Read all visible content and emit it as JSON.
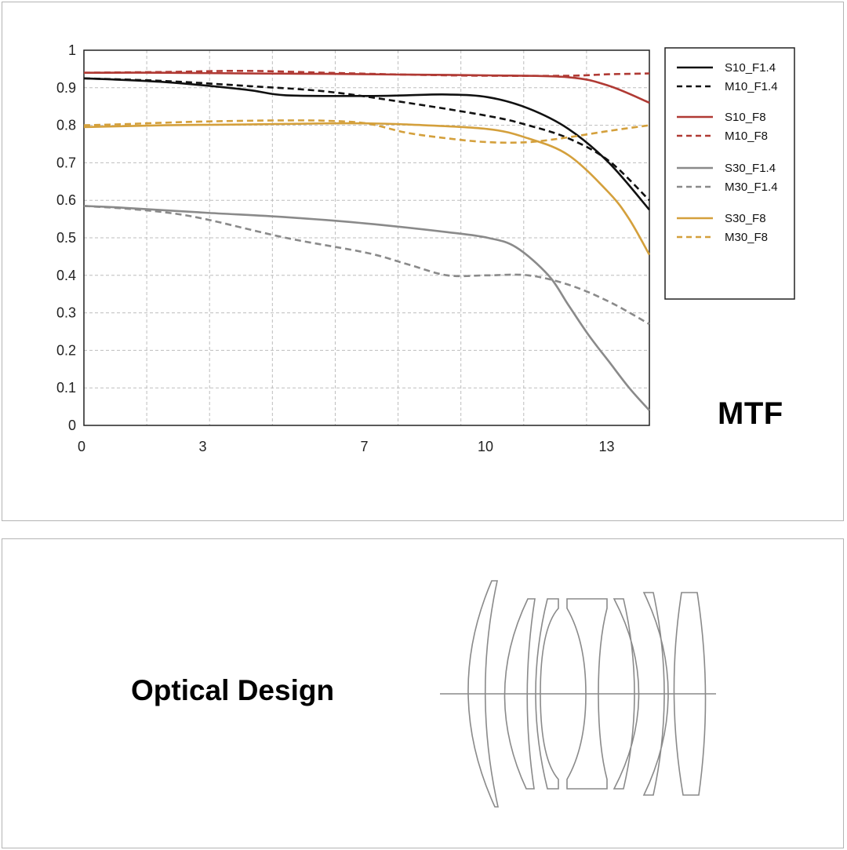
{
  "chart_data": {
    "type": "line",
    "title": "MTF",
    "xlabel": "",
    "ylabel": "",
    "xlim": [
      0,
      14
    ],
    "ylim": [
      0,
      1
    ],
    "x_ticks": [
      0,
      3,
      7,
      10,
      13
    ],
    "x_tick_labels": [
      "0",
      "3",
      "7",
      "10",
      "13"
    ],
    "y_ticks": [
      0,
      0.1,
      0.2,
      0.3,
      0.4,
      0.5,
      0.6,
      0.7,
      0.8,
      0.9,
      1
    ],
    "y_tick_labels": [
      "0",
      "0.1",
      "0.2",
      "0.3",
      "0.4",
      "0.5",
      "0.6",
      "0.7",
      "0.8",
      "0.9",
      "1"
    ],
    "grid": true,
    "legend_position": "right",
    "series": [
      {
        "name": "S10_F1.4",
        "color": "#111111",
        "dash": false,
        "x": [
          0,
          2,
          4,
          5,
          7,
          8,
          9,
          10,
          11,
          12,
          13,
          14
        ],
        "y": [
          0.925,
          0.915,
          0.895,
          0.88,
          0.878,
          0.88,
          0.882,
          0.875,
          0.845,
          0.79,
          0.7,
          0.575
        ]
      },
      {
        "name": "M10_F1.4",
        "color": "#111111",
        "dash": true,
        "x": [
          0,
          2,
          4,
          6,
          8,
          10,
          11,
          12,
          13,
          14
        ],
        "y": [
          0.925,
          0.918,
          0.905,
          0.89,
          0.86,
          0.825,
          0.8,
          0.765,
          0.705,
          0.6
        ]
      },
      {
        "name": "S10_F8",
        "color": "#b03a34",
        "dash": false,
        "x": [
          0,
          2,
          4,
          6,
          8,
          10,
          12,
          13,
          14
        ],
        "y": [
          0.94,
          0.94,
          0.938,
          0.937,
          0.935,
          0.933,
          0.928,
          0.905,
          0.86
        ]
      },
      {
        "name": "M10_F8",
        "color": "#b03a34",
        "dash": true,
        "x": [
          0,
          2,
          4,
          6,
          8,
          10,
          12,
          13,
          14
        ],
        "y": [
          0.94,
          0.942,
          0.945,
          0.94,
          0.935,
          0.932,
          0.932,
          0.936,
          0.938
        ]
      },
      {
        "name": "S30_F1.4",
        "color": "#8a8a8a",
        "dash": false,
        "x": [
          0,
          1,
          3,
          5,
          7,
          9,
          10,
          10.7,
          11.5,
          12,
          12.5,
          13,
          13.5,
          14
        ],
        "y": [
          0.585,
          0.58,
          0.567,
          0.555,
          0.538,
          0.515,
          0.5,
          0.475,
          0.4,
          0.32,
          0.24,
          0.17,
          0.1,
          0.04
        ]
      },
      {
        "name": "M30_F1.4",
        "color": "#8a8a8a",
        "dash": true,
        "x": [
          0,
          1,
          2,
          3,
          5,
          7,
          8,
          9,
          10,
          11,
          12,
          13,
          14
        ],
        "y": [
          0.585,
          0.578,
          0.568,
          0.55,
          0.5,
          0.46,
          0.43,
          0.4,
          0.4,
          0.4,
          0.375,
          0.33,
          0.27
        ]
      },
      {
        "name": "S30_F8",
        "color": "#d4a03c",
        "dash": false,
        "x": [
          0,
          2,
          4,
          6,
          7,
          8,
          10,
          11,
          12,
          13,
          13.5,
          14
        ],
        "y": [
          0.795,
          0.8,
          0.802,
          0.805,
          0.805,
          0.802,
          0.79,
          0.765,
          0.72,
          0.62,
          0.55,
          0.455
        ]
      },
      {
        "name": "M30_F8",
        "color": "#d4a03c",
        "dash": true,
        "x": [
          0,
          1,
          2,
          3,
          4,
          5,
          6,
          7,
          8,
          9,
          10,
          11,
          12,
          13,
          14
        ],
        "y": [
          0.8,
          0.803,
          0.807,
          0.81,
          0.812,
          0.813,
          0.812,
          0.805,
          0.78,
          0.765,
          0.755,
          0.755,
          0.768,
          0.785,
          0.8
        ]
      }
    ]
  },
  "mtf_label": "MTF",
  "optical_label": "Optical Design"
}
